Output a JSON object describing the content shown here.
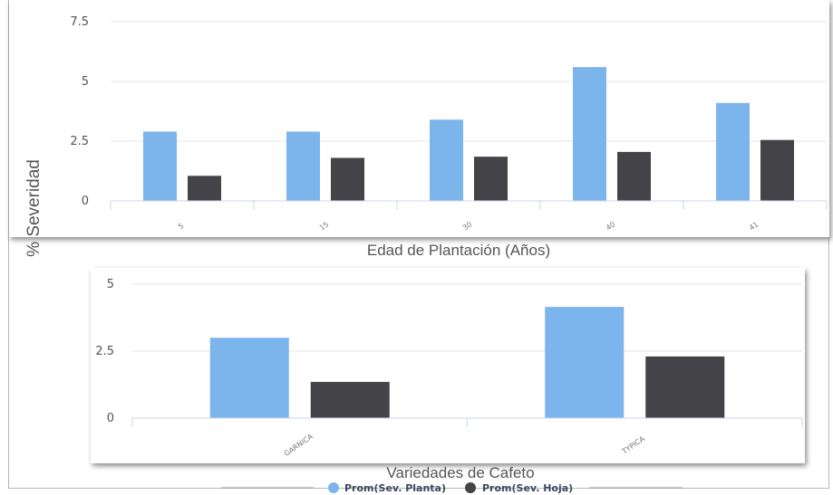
{
  "colors": {
    "planta": "#7cb5ec",
    "hoja": "#434348",
    "grid": "#e6e6e6",
    "axis": "#ccd6eb"
  },
  "ylabel": "% Severidad",
  "legend": {
    "position": "bottom-center",
    "items": [
      {
        "label": "Prom(Sev. Planta)",
        "color": "#7cb5ec"
      },
      {
        "label": "Prom(Sev. Hoja)",
        "color": "#434348"
      }
    ]
  },
  "chart_data": [
    {
      "type": "bar",
      "xlabel": "Edad de Plantación (Años)",
      "ylabel": "% Severidad",
      "categories": [
        "5",
        "15",
        "30",
        "40",
        "41"
      ],
      "yticks": [
        "0",
        "2.5",
        "5",
        "7.5"
      ],
      "ylim": [
        0,
        7.5
      ],
      "grid": true,
      "series": [
        {
          "name": "Prom(Sev. Planta)",
          "values": [
            2.9,
            2.9,
            3.4,
            5.6,
            4.1
          ]
        },
        {
          "name": "Prom(Sev. Hoja)",
          "values": [
            1.05,
            1.8,
            1.85,
            2.05,
            2.55
          ]
        }
      ]
    },
    {
      "type": "bar",
      "xlabel": "Variedades de Cafeto",
      "ylabel": "% Severidad",
      "categories": [
        "GARNICA",
        "TYPICA"
      ],
      "yticks": [
        "0",
        "2.5",
        "5"
      ],
      "ylim": [
        0,
        5
      ],
      "grid": true,
      "series": [
        {
          "name": "Prom(Sev. Planta)",
          "values": [
            3.0,
            4.15
          ]
        },
        {
          "name": "Prom(Sev. Hoja)",
          "values": [
            1.35,
            2.3
          ]
        }
      ]
    }
  ]
}
